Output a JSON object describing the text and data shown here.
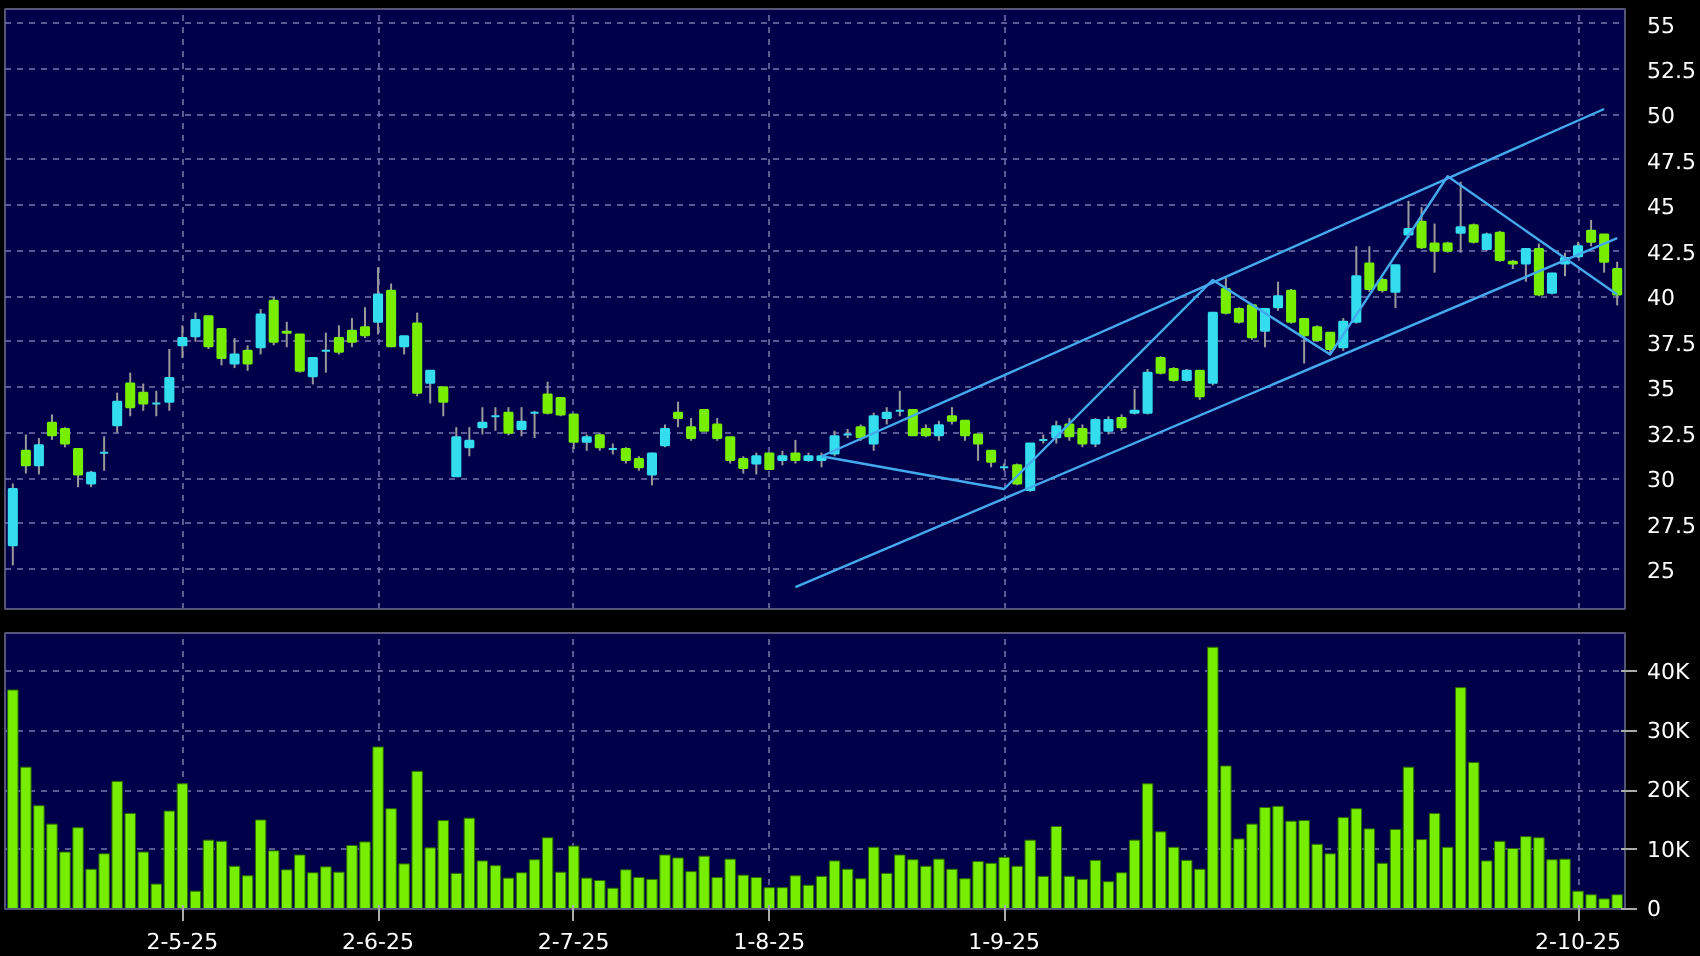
{
  "chart_data": [
    {
      "type": "candlestick",
      "categories": [
        null,
        null,
        null,
        null,
        null,
        null,
        null,
        null,
        null,
        null,
        null,
        null,
        null,
        null,
        null,
        null,
        null,
        null,
        null,
        null,
        null,
        null,
        null,
        null,
        null,
        null,
        null,
        null,
        null,
        null,
        null,
        null,
        null,
        null,
        null,
        null,
        null,
        null,
        null,
        null,
        null,
        null,
        null,
        null,
        null,
        null,
        null,
        null,
        null,
        null,
        null,
        null,
        null,
        null,
        null,
        null,
        null,
        null,
        null,
        null,
        null,
        null,
        null,
        null,
        null,
        null,
        null,
        null,
        null,
        null,
        null,
        null,
        null,
        null,
        null,
        null,
        null,
        null,
        null,
        null,
        null,
        null,
        null,
        null,
        null,
        null,
        null,
        null,
        null,
        null,
        null,
        null,
        null,
        null,
        null,
        null,
        null,
        null,
        null,
        null,
        null,
        null,
        null,
        null,
        null,
        null,
        null,
        null,
        null,
        null,
        null,
        null,
        null,
        null,
        null,
        null,
        null,
        null,
        null,
        null,
        null,
        null,
        null,
        null
      ],
      "ohlc": [
        [
          26.3,
          29.7,
          25.2,
          29.4
        ],
        [
          31.5,
          32.4,
          30.25,
          30.7
        ],
        [
          30.7,
          32.2,
          30.2,
          31.8
        ],
        [
          33.05,
          33.5,
          32.1,
          32.35
        ],
        [
          32.7,
          32.8,
          31.7,
          31.9
        ],
        [
          31.6,
          31.6,
          29.5,
          30.2
        ],
        [
          29.7,
          30.4,
          29.5,
          30.3
        ],
        [
          31.4,
          32.3,
          30.4,
          31.4
        ],
        [
          32.9,
          34.7,
          32.5,
          34.2
        ],
        [
          35.2,
          35.8,
          33.4,
          33.9
        ],
        [
          34.7,
          35.2,
          33.7,
          34.1
        ],
        [
          34.1,
          34.8,
          33.4,
          34.1
        ],
        [
          34.2,
          37.1,
          33.7,
          35.5
        ],
        [
          37.3,
          38.4,
          36.6,
          37.7
        ],
        [
          37.8,
          39.1,
          37.5,
          38.7
        ],
        [
          38.9,
          38.9,
          37.1,
          37.25
        ],
        [
          38.2,
          38.2,
          36.2,
          36.6
        ],
        [
          36.3,
          37.7,
          36.05,
          36.8
        ],
        [
          37.0,
          37.3,
          35.9,
          36.3
        ],
        [
          37.2,
          39.3,
          36.8,
          39.0
        ],
        [
          39.75,
          39.95,
          37.3,
          37.5
        ],
        [
          38.05,
          38.6,
          37.2,
          38.0
        ],
        [
          37.9,
          37.9,
          35.8,
          35.9
        ],
        [
          35.6,
          36.6,
          35.15,
          36.6
        ],
        [
          37.0,
          38.0,
          35.8,
          37.0
        ],
        [
          37.7,
          38.4,
          36.8,
          36.95
        ],
        [
          38.1,
          38.8,
          37.2,
          37.5
        ],
        [
          38.3,
          39.4,
          37.7,
          37.85
        ],
        [
          38.6,
          41.6,
          37.9,
          40.1
        ],
        [
          40.3,
          40.7,
          37.2,
          37.25
        ],
        [
          37.25,
          37.8,
          36.8,
          37.8
        ],
        [
          38.5,
          39.1,
          34.5,
          34.7
        ],
        [
          35.25,
          35.9,
          34.1,
          35.9
        ],
        [
          35.0,
          35.0,
          33.4,
          34.2
        ],
        [
          30.1,
          32.8,
          30.1,
          32.25
        ],
        [
          31.7,
          32.8,
          31.2,
          32.05
        ],
        [
          32.8,
          33.9,
          32.4,
          33.05
        ],
        [
          33.4,
          33.9,
          32.6,
          33.4
        ],
        [
          33.6,
          33.9,
          32.35,
          32.5
        ],
        [
          32.7,
          33.9,
          32.3,
          33.1
        ],
        [
          33.6,
          33.7,
          32.2,
          33.6
        ],
        [
          34.6,
          35.3,
          33.5,
          33.6
        ],
        [
          34.4,
          34.4,
          33.4,
          33.5
        ],
        [
          33.5,
          33.5,
          31.6,
          32.0
        ],
        [
          32.0,
          32.4,
          31.5,
          32.25
        ],
        [
          32.35,
          32.5,
          31.5,
          31.7
        ],
        [
          31.6,
          31.9,
          31.3,
          31.6
        ],
        [
          31.6,
          31.7,
          30.8,
          31.0
        ],
        [
          31.05,
          31.2,
          30.4,
          30.6
        ],
        [
          30.2,
          31.4,
          29.6,
          31.35
        ],
        [
          31.8,
          32.95,
          31.7,
          32.7
        ],
        [
          33.6,
          34.2,
          32.8,
          33.3
        ],
        [
          32.8,
          33.3,
          32.05,
          32.2
        ],
        [
          33.75,
          33.75,
          32.6,
          32.6
        ],
        [
          32.95,
          33.3,
          32.05,
          32.2
        ],
        [
          32.25,
          32.25,
          30.8,
          31.0
        ],
        [
          31.05,
          31.2,
          30.25,
          30.55
        ],
        [
          30.8,
          31.4,
          30.2,
          31.2
        ],
        [
          31.35,
          31.4,
          30.5,
          30.5
        ],
        [
          31.0,
          31.5,
          30.7,
          31.2
        ],
        [
          31.35,
          32.1,
          30.8,
          31.0
        ],
        [
          31.0,
          31.4,
          30.9,
          31.2
        ],
        [
          31.0,
          31.4,
          30.6,
          31.2
        ],
        [
          31.35,
          32.6,
          31.2,
          32.3
        ],
        [
          32.4,
          32.7,
          32.2,
          32.4
        ],
        [
          32.8,
          32.95,
          32.05,
          32.25
        ],
        [
          31.9,
          33.6,
          31.5,
          33.4
        ],
        [
          33.3,
          33.9,
          32.95,
          33.6
        ],
        [
          33.7,
          34.8,
          33.4,
          33.7
        ],
        [
          33.75,
          33.75,
          32.35,
          32.35
        ],
        [
          32.7,
          32.95,
          32.25,
          32.35
        ],
        [
          32.35,
          33.15,
          32.05,
          32.9
        ],
        [
          33.4,
          33.9,
          32.95,
          33.15
        ],
        [
          33.15,
          33.15,
          32.05,
          32.35
        ],
        [
          32.4,
          32.4,
          30.95,
          31.9
        ],
        [
          31.5,
          31.5,
          30.6,
          30.9
        ],
        [
          30.6,
          30.8,
          30.4,
          30.6
        ],
        [
          30.7,
          30.8,
          29.6,
          29.7
        ],
        [
          29.35,
          31.9,
          29.25,
          31.9
        ],
        [
          32.1,
          32.4,
          31.9,
          32.1
        ],
        [
          32.25,
          33.15,
          31.9,
          32.85
        ],
        [
          32.95,
          33.3,
          32.05,
          32.3
        ],
        [
          32.7,
          32.95,
          31.7,
          31.9
        ],
        [
          31.9,
          33.3,
          31.7,
          33.2
        ],
        [
          32.6,
          33.4,
          32.4,
          33.2
        ],
        [
          33.3,
          33.5,
          32.6,
          32.8
        ],
        [
          33.6,
          34.9,
          33.5,
          33.7
        ],
        [
          33.6,
          36.0,
          33.5,
          35.8
        ],
        [
          36.6,
          36.7,
          35.7,
          35.8
        ],
        [
          36.0,
          36.1,
          35.3,
          35.4
        ],
        [
          35.4,
          36.0,
          35.3,
          35.9
        ],
        [
          35.9,
          35.9,
          34.3,
          34.5
        ],
        [
          35.25,
          39.1,
          35.1,
          39.1
        ],
        [
          40.4,
          41.0,
          39.0,
          39.1
        ],
        [
          39.3,
          39.4,
          38.5,
          38.6
        ],
        [
          39.5,
          39.5,
          37.6,
          37.75
        ],
        [
          38.1,
          39.3,
          37.2,
          39.3
        ],
        [
          39.4,
          40.8,
          39.2,
          40.0
        ],
        [
          40.3,
          40.4,
          38.5,
          38.6
        ],
        [
          38.75,
          38.8,
          36.3,
          37.85
        ],
        [
          38.3,
          38.4,
          37.5,
          37.6
        ],
        [
          38.0,
          38.0,
          36.85,
          37.1
        ],
        [
          37.2,
          38.8,
          37.0,
          38.6
        ],
        [
          38.6,
          42.75,
          38.5,
          41.1
        ],
        [
          41.8,
          42.75,
          40.25,
          40.4
        ],
        [
          40.9,
          41.0,
          40.2,
          40.35
        ],
        [
          40.25,
          41.7,
          39.35,
          41.7
        ],
        [
          43.4,
          45.25,
          43.2,
          43.7
        ],
        [
          44.1,
          44.9,
          42.6,
          42.7
        ],
        [
          42.9,
          44.0,
          41.3,
          42.5
        ],
        [
          42.9,
          43.0,
          42.4,
          42.5
        ],
        [
          43.5,
          46.3,
          42.4,
          43.8
        ],
        [
          43.9,
          44.0,
          42.9,
          43.0
        ],
        [
          42.6,
          43.5,
          42.5,
          43.4
        ],
        [
          43.5,
          43.6,
          41.9,
          42.0
        ],
        [
          41.9,
          42.0,
          41.5,
          41.8
        ],
        [
          41.8,
          42.6,
          40.8,
          42.6
        ],
        [
          42.6,
          42.9,
          40.0,
          40.1
        ],
        [
          40.2,
          41.3,
          40.1,
          41.25
        ],
        [
          41.8,
          42.4,
          41.1,
          42.1
        ],
        [
          42.2,
          43.0,
          42.1,
          42.75
        ],
        [
          43.6,
          44.2,
          42.75,
          43.0
        ],
        [
          43.4,
          43.4,
          41.3,
          41.9
        ],
        [
          41.5,
          41.9,
          39.5,
          40.1
        ]
      ],
      "colors": [
        "#33ddee",
        "#77ee00",
        "#33ddee",
        "#77ee00",
        "#77ee00",
        "#77ee00",
        "#33ddee",
        "#33ddee",
        "#33ddee",
        "#77ee00",
        "#77ee00",
        "#33ddee",
        "#33ddee",
        "#33ddee",
        "#33ddee",
        "#77ee00",
        "#77ee00",
        "#33ddee",
        "#77ee00",
        "#33ddee",
        "#77ee00",
        "#77ee00",
        "#77ee00",
        "#33ddee",
        "#33ddee",
        "#77ee00",
        "#77ee00",
        "#77ee00",
        "#33ddee",
        "#77ee00",
        "#33ddee",
        "#77ee00",
        "#33ddee",
        "#77ee00",
        "#33ddee",
        "#33ddee",
        "#33ddee",
        "#33ddee",
        "#77ee00",
        "#33ddee",
        "#33ddee",
        "#77ee00",
        "#77ee00",
        "#77ee00",
        "#33ddee",
        "#77ee00",
        "#33ddee",
        "#77ee00",
        "#77ee00",
        "#33ddee",
        "#33ddee",
        "#77ee00",
        "#77ee00",
        "#77ee00",
        "#77ee00",
        "#77ee00",
        "#77ee00",
        "#33ddee",
        "#77ee00",
        "#33ddee",
        "#77ee00",
        "#33ddee",
        "#33ddee",
        "#33ddee",
        "#33ddee",
        "#77ee00",
        "#33ddee",
        "#33ddee",
        "#33ddee",
        "#77ee00",
        "#77ee00",
        "#33ddee",
        "#77ee00",
        "#77ee00",
        "#77ee00",
        "#77ee00",
        "#33ddee",
        "#77ee00",
        "#33ddee",
        "#33ddee",
        "#33ddee",
        "#77ee00",
        "#77ee00",
        "#33ddee",
        "#33ddee",
        "#77ee00",
        "#33ddee",
        "#33ddee",
        "#77ee00",
        "#77ee00",
        "#33ddee",
        "#77ee00",
        "#33ddee",
        "#77ee00",
        "#77ee00",
        "#77ee00",
        "#33ddee",
        "#33ddee",
        "#77ee00",
        "#77ee00",
        "#77ee00",
        "#77ee00",
        "#33ddee",
        "#33ddee",
        "#77ee00",
        "#77ee00",
        "#33ddee",
        "#33ddee",
        "#77ee00",
        "#77ee00",
        "#77ee00",
        "#33ddee",
        "#77ee00",
        "#33ddee",
        "#77ee00",
        "#77ee00",
        "#33ddee",
        "#77ee00",
        "#33ddee",
        "#33ddee",
        "#33ddee",
        "#77ee00",
        "#77ee00",
        "#77ee00"
      ],
      "series": [
        {
          "type": "line",
          "color": "#44aaee",
          "values": [
            null,
            null,
            null,
            null,
            null,
            null,
            null,
            null,
            null,
            null,
            null,
            null,
            null,
            null,
            null,
            null,
            null,
            null,
            null,
            null,
            null,
            null,
            null,
            null,
            null,
            null,
            null,
            null,
            null,
            null,
            null,
            null,
            null,
            null,
            null,
            null,
            null,
            null,
            null,
            null,
            null,
            null,
            null,
            null,
            null,
            null,
            null,
            null,
            null,
            null,
            null,
            null,
            null,
            null,
            null,
            null,
            null,
            null,
            null,
            null,
            null,
            null,
            31.2,
            null,
            null,
            null,
            null,
            null,
            null,
            null,
            null,
            null,
            null,
            null,
            null,
            null,
            null,
            null,
            null,
            null,
            null,
            null,
            null,
            null,
            null,
            null,
            null,
            null,
            null,
            null,
            null,
            null,
            null,
            null,
            null,
            null,
            null,
            null,
            null,
            null,
            null,
            null,
            null,
            null,
            null,
            null,
            null,
            null,
            null,
            null,
            null,
            null,
            null,
            null,
            null,
            null,
            null,
            null,
            null,
            null,
            null,
            null,
            50.3,
            null
          ]
        },
        {
          "type": "line",
          "color": "#44aaee",
          "values": [
            null,
            null,
            null,
            null,
            null,
            null,
            null,
            null,
            null,
            null,
            null,
            null,
            null,
            null,
            null,
            null,
            null,
            null,
            null,
            null,
            null,
            null,
            null,
            null,
            null,
            null,
            null,
            null,
            null,
            null,
            null,
            null,
            null,
            null,
            null,
            null,
            null,
            null,
            null,
            null,
            null,
            null,
            null,
            null,
            null,
            null,
            null,
            null,
            null,
            null,
            null,
            null,
            null,
            null,
            null,
            null,
            null,
            null,
            null,
            null,
            24.0,
            null,
            null,
            null,
            null,
            null,
            null,
            null,
            null,
            null,
            null,
            null,
            null,
            null,
            null,
            null,
            null,
            null,
            null,
            null,
            null,
            null,
            null,
            null,
            null,
            null,
            null,
            null,
            null,
            null,
            null,
            null,
            null,
            null,
            null,
            null,
            null,
            null,
            null,
            null,
            null,
            null,
            null,
            null,
            null,
            null,
            null,
            null,
            null,
            null,
            null,
            null,
            null,
            null,
            null,
            null,
            null,
            null,
            null,
            null,
            null,
            null,
            null,
            43.2
          ]
        },
        {
          "type": "line",
          "color": "#44aaee",
          "values": [
            null,
            null,
            null,
            null,
            null,
            null,
            null,
            null,
            null,
            null,
            null,
            null,
            null,
            null,
            null,
            null,
            null,
            null,
            null,
            null,
            null,
            null,
            null,
            null,
            null,
            null,
            null,
            null,
            null,
            null,
            null,
            null,
            null,
            null,
            null,
            null,
            null,
            null,
            null,
            null,
            null,
            null,
            null,
            null,
            null,
            null,
            null,
            null,
            null,
            null,
            null,
            null,
            null,
            null,
            null,
            null,
            null,
            null,
            null,
            null,
            null,
            null,
            31.2,
            null,
            null,
            null,
            null,
            null,
            null,
            null,
            null,
            null,
            null,
            null,
            null,
            null,
            29.4,
            null,
            null,
            null,
            null,
            null,
            null,
            null,
            null,
            null,
            null,
            null,
            null,
            null,
            null,
            null,
            40.9,
            null,
            null,
            null,
            null,
            null,
            null,
            null,
            null,
            36.8,
            null,
            null,
            null,
            null,
            null,
            null,
            null,
            null,
            46.6,
            null,
            null,
            null,
            null,
            null,
            null,
            null,
            null,
            null,
            null,
            null,
            null,
            40.1
          ]
        }
      ],
      "ylim": [
        22.8,
        55.8
      ],
      "yticks": [
        25,
        27.5,
        30,
        32.5,
        35,
        37.5,
        40,
        42.5,
        45,
        47.5,
        50,
        52.5,
        55
      ],
      "grid": true,
      "tick_labels": "y"
    },
    {
      "type": "bar",
      "categories": [
        null,
        null,
        null,
        null,
        null,
        null,
        null,
        null,
        null,
        null,
        null,
        null,
        null,
        "2-5-25",
        null,
        null,
        null,
        null,
        null,
        null,
        null,
        null,
        null,
        null,
        null,
        null,
        null,
        null,
        "2-6-25",
        null,
        null,
        null,
        null,
        null,
        null,
        null,
        null,
        null,
        null,
        null,
        null,
        null,
        null,
        "2-7-25",
        null,
        null,
        null,
        null,
        null,
        null,
        null,
        null,
        null,
        null,
        null,
        null,
        null,
        null,
        "1-8-25",
        null,
        null,
        null,
        null,
        null,
        null,
        null,
        null,
        null,
        null,
        null,
        null,
        null,
        null,
        null,
        null,
        null,
        "1-9-25",
        null,
        null,
        null,
        null,
        null,
        null,
        null,
        null,
        null,
        null,
        null,
        null,
        null,
        null,
        null,
        null,
        null,
        null,
        null,
        null,
        null,
        null,
        null,
        null,
        null,
        null,
        null,
        null,
        null,
        null,
        null,
        null,
        null,
        null,
        null,
        null,
        null,
        null,
        null,
        null,
        null,
        null,
        null,
        "2-10-25",
        null,
        null,
        null
      ],
      "values": [
        36900,
        23900,
        17400,
        14300,
        9600,
        13700,
        6700,
        9300,
        21500,
        16100,
        9600,
        4200,
        16500,
        21100,
        3000,
        11600,
        11400,
        7200,
        5600,
        15000,
        9800,
        6600,
        9100,
        6100,
        7100,
        6200,
        10700,
        11300,
        27300,
        16900,
        7600,
        23200,
        10300,
        14900,
        6000,
        15300,
        8100,
        7300,
        5200,
        6100,
        8300,
        12000,
        6200,
        10600,
        5200,
        4800,
        3500,
        6600,
        5300,
        5000,
        9100,
        8600,
        6300,
        8900,
        5300,
        8400,
        5700,
        5300,
        3600,
        3600,
        5600,
        4000,
        5500,
        8100,
        6700,
        5100,
        10400,
        6000,
        9100,
        8300,
        7200,
        8400,
        6700,
        5100,
        8000,
        7700,
        8700,
        7200,
        11600,
        5500,
        13900,
        5500,
        5000,
        8200,
        4600,
        6100,
        11600,
        21100,
        13000,
        10400,
        8200,
        6700,
        44100,
        24100,
        11800,
        14300,
        17100,
        17300,
        14800,
        14900,
        10900,
        9300,
        15400,
        16900,
        13500,
        7700,
        13400,
        23900,
        11700,
        16100,
        10400,
        37300,
        24700,
        8100,
        11400,
        10200,
        12200,
        12000,
        8300,
        8400,
        3000,
        2400,
        1700,
        2400
      ],
      "color": "#77ee00",
      "ylim": [
        0,
        46500
      ],
      "yticks": [
        0,
        {
          "value": 10000,
          "label": "10K"
        },
        {
          "value": 20000,
          "label": "20K"
        },
        {
          "value": 30000,
          "label": "30K"
        },
        {
          "value": 40000,
          "label": "40K"
        }
      ],
      "grid": true
    }
  ]
}
